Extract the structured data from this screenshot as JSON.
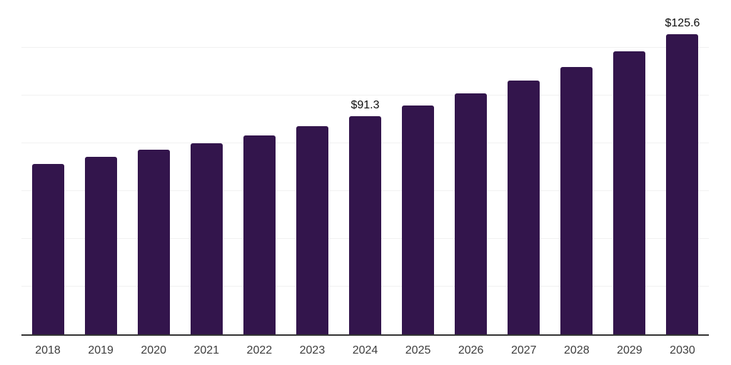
{
  "chart_data": {
    "type": "bar",
    "title": "",
    "xlabel": "",
    "ylabel": "",
    "categories": [
      "2018",
      "2019",
      "2020",
      "2021",
      "2022",
      "2023",
      "2024",
      "2025",
      "2026",
      "2027",
      "2028",
      "2029",
      "2030"
    ],
    "values": [
      71.5,
      74.2,
      77.4,
      80.1,
      83.4,
      87.2,
      91.3,
      95.9,
      100.9,
      106.3,
      112.0,
      118.6,
      125.6
    ],
    "data_labels": [
      "",
      "",
      "",
      "",
      "",
      "",
      "$91.3",
      "",
      "",
      "",
      "",
      "",
      "$125.6"
    ],
    "value_prefix": "$",
    "ylim": [
      0,
      140
    ],
    "gridline_step": 20,
    "grid": "horizontal",
    "y_tick_labels_visible": false,
    "legend": "none",
    "colors": {
      "bar": "#33154c",
      "axis": "#333333",
      "gridline": "#f1f1f1",
      "value_label": "#0d0d0d",
      "tick_label": "#3d3d3d",
      "background": "#ffffff"
    }
  }
}
